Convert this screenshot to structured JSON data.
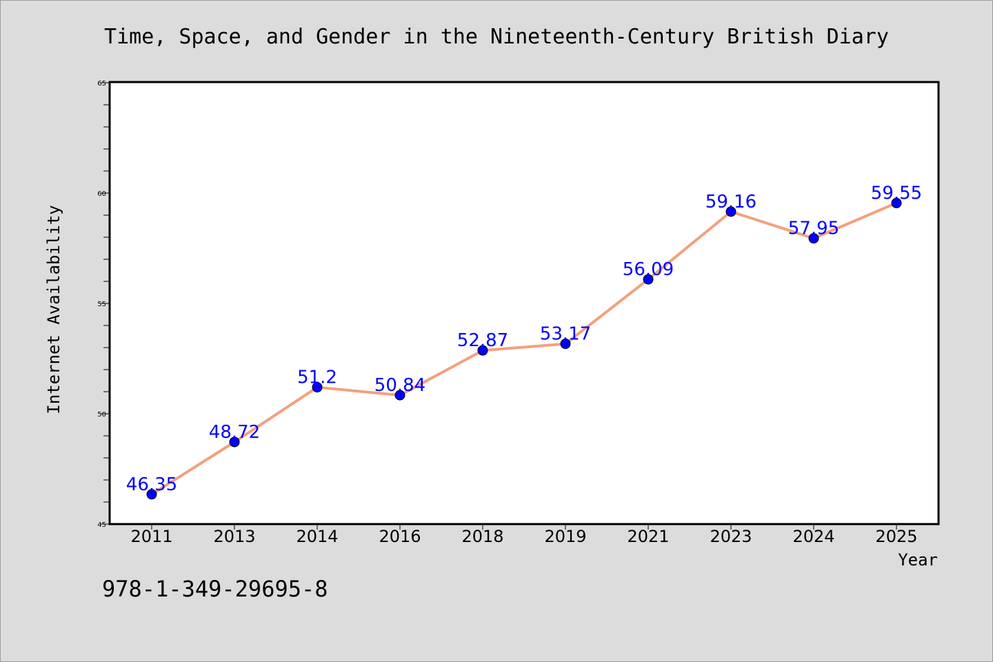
{
  "chart_data": {
    "type": "line",
    "title": "Time, Space, and Gender in the Nineteenth-Century British Diary",
    "xlabel": "Year",
    "ylabel": "Internet Availability",
    "categories": [
      "2011",
      "2013",
      "2014",
      "2016",
      "2018",
      "2019",
      "2021",
      "2023",
      "2024",
      "2025"
    ],
    "values": [
      46.35,
      48.72,
      51.2,
      50.84,
      52.87,
      53.17,
      56.09,
      59.16,
      57.95,
      59.55
    ],
    "data_labels": [
      "46.35",
      "48.72",
      "51.2",
      "50.84",
      "52.87",
      "53.17",
      "56.09",
      "59.16",
      "57.95",
      "59.55"
    ],
    "ylim": [
      45,
      65
    ],
    "yticks": [
      45,
      50,
      55,
      60,
      65
    ],
    "y_minor_step": 1,
    "grid": false,
    "colors": {
      "line": "#f4a07c",
      "marker": "#0000ff",
      "label": "#0000ff",
      "plot_background": "#ffffff",
      "page_background": "#dcdcdc"
    }
  },
  "footer": {
    "isbn": "978-1-349-29695-8"
  }
}
